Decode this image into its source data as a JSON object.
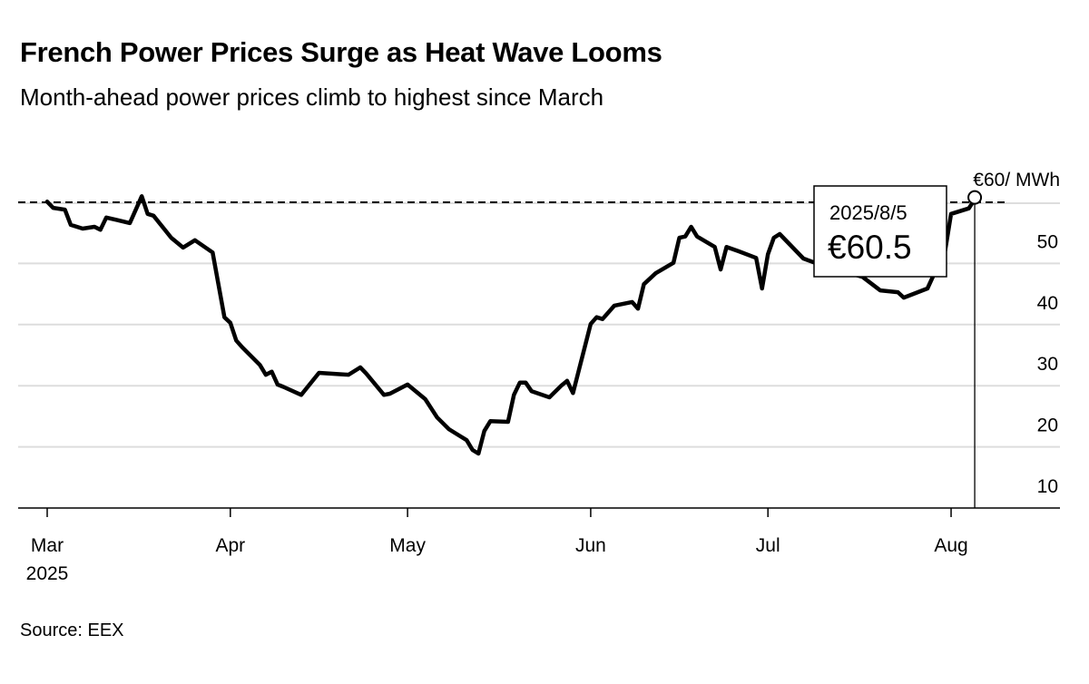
{
  "chart_data": {
    "type": "line",
    "title": "French Power Prices Surge as Heat Wave Looms",
    "subtitle": "Month-ahead power prices climb to highest since March",
    "source": "Source: EEX",
    "unit_label": "€60/ MWh",
    "ylim": [
      10,
      60
    ],
    "y_ticks": [
      10,
      20,
      30,
      40,
      50
    ],
    "reference_line": {
      "value": 60,
      "style": "dashed"
    },
    "x_ticks": [
      {
        "date": "2025-03-01",
        "label": "Mar",
        "sublabel": "2025"
      },
      {
        "date": "2025-04-01",
        "label": "Apr"
      },
      {
        "date": "2025-05-01",
        "label": "May"
      },
      {
        "date": "2025-06-01",
        "label": "Jun"
      },
      {
        "date": "2025-07-01",
        "label": "Jul"
      },
      {
        "date": "2025-08-01",
        "label": "Aug"
      }
    ],
    "xlim": [
      "2025-03-01",
      "2025-08-18"
    ],
    "grid": true,
    "line_color": "#000000",
    "grid_color": "#dddddd",
    "tooltip": {
      "date": "2025/8/5",
      "value": "€60.5"
    },
    "series": [
      {
        "x": [
          "2025-03-01",
          "2025-03-02",
          "2025-03-04",
          "2025-03-05",
          "2025-03-07",
          "2025-03-09",
          "2025-03-10",
          "2025-03-11",
          "2025-03-15",
          "2025-03-17",
          "2025-03-18",
          "2025-03-19",
          "2025-03-22",
          "2025-03-24",
          "2025-03-26",
          "2025-03-29",
          "2025-03-31",
          "2025-04-01",
          "2025-04-02",
          "2025-04-03",
          "2025-04-06",
          "2025-04-07",
          "2025-04-08",
          "2025-04-09",
          "2025-04-10",
          "2025-04-13",
          "2025-04-16",
          "2025-04-21",
          "2025-04-23",
          "2025-04-24",
          "2025-04-27",
          "2025-04-28",
          "2025-05-01",
          "2025-05-04",
          "2025-05-06",
          "2025-05-08",
          "2025-05-11",
          "2025-05-12",
          "2025-05-13",
          "2025-05-14",
          "2025-05-15",
          "2025-05-18",
          "2025-05-19",
          "2025-05-20",
          "2025-05-21",
          "2025-05-22",
          "2025-05-25",
          "2025-05-27",
          "2025-05-28",
          "2025-05-29",
          "2025-06-01",
          "2025-06-02",
          "2025-06-03",
          "2025-06-05",
          "2025-06-08",
          "2025-06-09",
          "2025-06-10",
          "2025-06-12",
          "2025-06-15",
          "2025-06-16",
          "2025-06-17",
          "2025-06-18",
          "2025-06-19",
          "2025-06-22",
          "2025-06-23",
          "2025-06-24",
          "2025-06-26",
          "2025-06-29",
          "2025-06-30",
          "2025-07-01",
          "2025-07-02",
          "2025-07-03",
          "2025-07-07",
          "2025-07-09",
          "2025-07-13",
          "2025-07-17",
          "2025-07-20",
          "2025-07-23",
          "2025-07-24",
          "2025-07-28",
          "2025-07-30",
          "2025-07-31",
          "2025-08-01",
          "2025-08-04",
          "2025-08-05"
        ],
        "y": [
          60.1,
          59.1,
          58.8,
          56.3,
          55.7,
          56.0,
          55.5,
          57.5,
          56.6,
          61.0,
          58.1,
          57.8,
          54.2,
          52.6,
          53.8,
          51.8,
          41.2,
          40.3,
          37.4,
          36.3,
          33.4,
          31.8,
          32.3,
          30.2,
          29.8,
          28.5,
          32.1,
          31.8,
          33.0,
          32.0,
          28.5,
          28.7,
          30.2,
          27.8,
          24.8,
          22.9,
          21.1,
          19.5,
          18.9,
          22.6,
          24.2,
          24.1,
          28.5,
          30.5,
          30.5,
          29.1,
          28.1,
          30.0,
          30.8,
          28.8,
          40.1,
          41.2,
          40.9,
          43.1,
          43.7,
          42.6,
          46.6,
          48.4,
          50.1,
          54.2,
          54.4,
          56.0,
          54.4,
          52.7,
          49.0,
          52.7,
          52.0,
          50.9,
          45.9,
          51.5,
          54.2,
          54.8,
          50.8,
          50.1,
          48.9,
          47.8,
          45.6,
          45.3,
          44.4,
          45.9,
          50.1,
          52.1,
          58.1,
          59.0,
          60.5
        ]
      }
    ]
  }
}
